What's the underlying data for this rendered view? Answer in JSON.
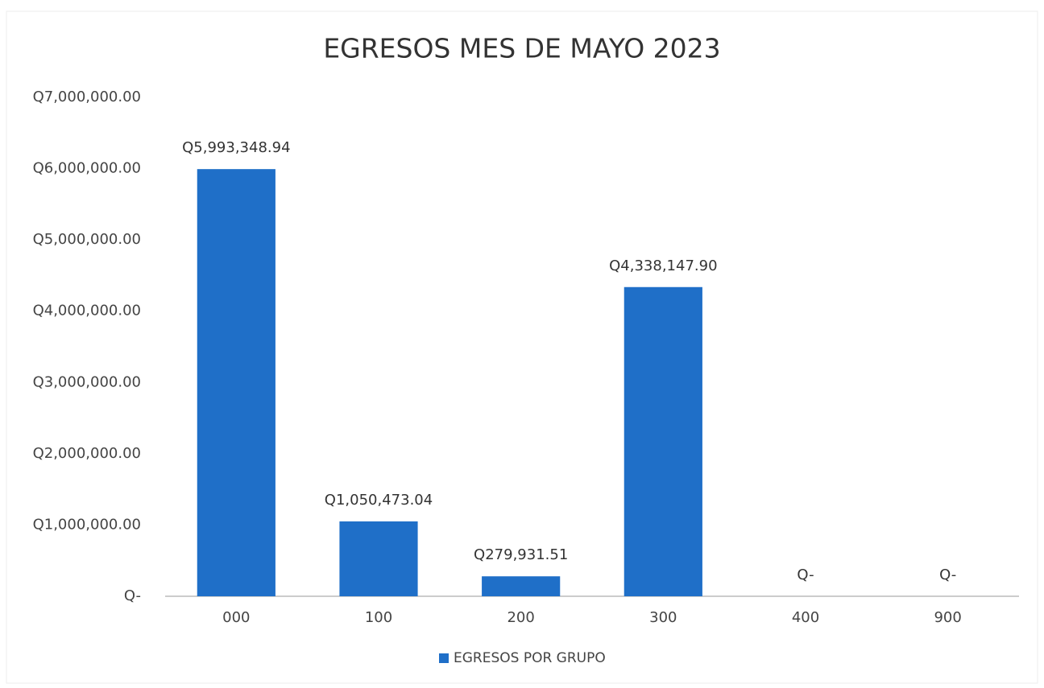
{
  "chart_data": {
    "type": "bar",
    "title": "EGRESOS MES DE MAYO 2023",
    "categories": [
      "000",
      "100",
      "200",
      "300",
      "400",
      "900"
    ],
    "series": [
      {
        "name": "EGRESOS POR GRUPO",
        "color": "#1f6fc8",
        "values": [
          5993348.94,
          1050473.04,
          279931.51,
          4338147.9,
          0,
          0
        ],
        "value_labels": [
          "Q5,993,348.94",
          "Q1,050,473.04",
          "Q279,931.51",
          "Q4,338,147.90",
          "Q-",
          "Q-"
        ]
      }
    ],
    "ylim": [
      0,
      7000000
    ],
    "yticks": [
      {
        "value": 0,
        "label": "Q-"
      },
      {
        "value": 1000000,
        "label": "Q1,000,000.00"
      },
      {
        "value": 2000000,
        "label": "Q2,000,000.00"
      },
      {
        "value": 3000000,
        "label": "Q3,000,000.00"
      },
      {
        "value": 4000000,
        "label": "Q4,000,000.00"
      },
      {
        "value": 5000000,
        "label": "Q5,000,000.00"
      },
      {
        "value": 6000000,
        "label": "Q6,000,000.00"
      },
      {
        "value": 7000000,
        "label": "Q7,000,000.00"
      }
    ],
    "grid": false,
    "legend": "bottom"
  }
}
